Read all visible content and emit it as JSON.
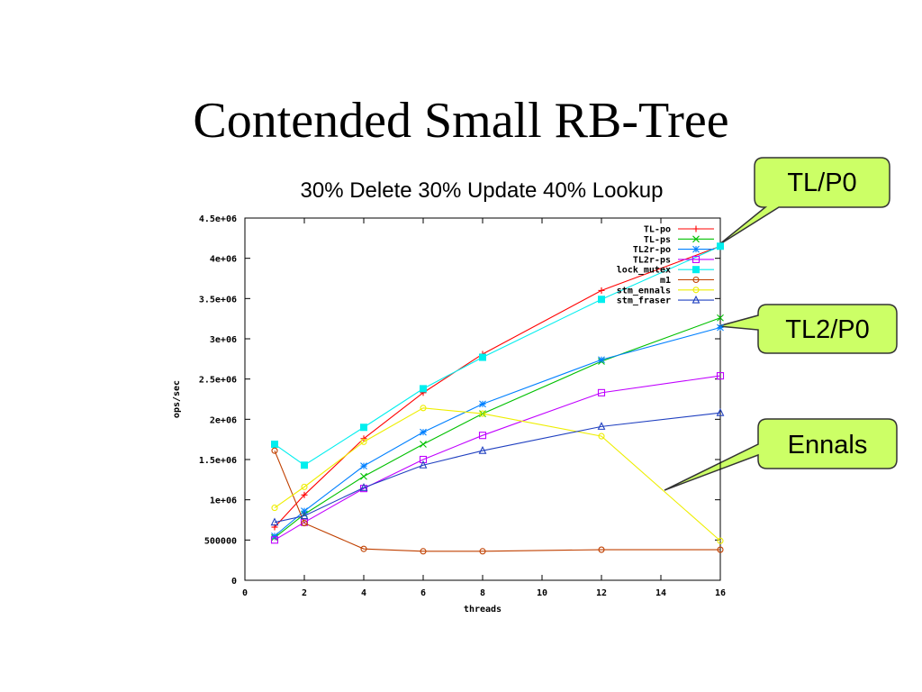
{
  "slide": {
    "title": "Contended Small RB-Tree"
  },
  "callouts": [
    {
      "id": "tlp0",
      "label": "TL/P0"
    },
    {
      "id": "tl2p0",
      "label": "TL2/P0"
    },
    {
      "id": "ennals",
      "label": "Ennals"
    }
  ],
  "colors": {
    "callout_fill": "#ccff66",
    "callout_stroke": "#333333"
  },
  "chart_data": {
    "type": "line",
    "title": "30% Delete 30% Update 40% Lookup",
    "xlabel": "threads",
    "ylabel": "ops/sec",
    "xlim": [
      0,
      16
    ],
    "ylim": [
      0,
      4500000
    ],
    "xticks": [
      0,
      2,
      4,
      6,
      8,
      10,
      12,
      14,
      16
    ],
    "xtick_labels": [
      "0",
      "2",
      "4",
      "6",
      "8",
      "10",
      "12",
      "14",
      "16"
    ],
    "yticks": [
      0,
      500000,
      1000000,
      1500000,
      2000000,
      2500000,
      3000000,
      3500000,
      4000000,
      4500000
    ],
    "ytick_labels": [
      "0",
      "500000",
      "1e+06",
      "1.5e+06",
      "2e+06",
      "2.5e+06",
      "3e+06",
      "3.5e+06",
      "4e+06",
      "4.5e+06"
    ],
    "grid": false,
    "legend_position": "top-right",
    "x": [
      1,
      2,
      4,
      6,
      8,
      12,
      16
    ],
    "series": [
      {
        "name": "TL-po",
        "color": "#ff0000",
        "marker": "plus",
        "values": [
          660000,
          1060000,
          1760000,
          2330000,
          2810000,
          3600000,
          4150000
        ]
      },
      {
        "name": "TL-ps",
        "color": "#00c000",
        "marker": "cross",
        "values": [
          530000,
          820000,
          1290000,
          1690000,
          2070000,
          2720000,
          3260000
        ]
      },
      {
        "name": "TL2r-po",
        "color": "#0080ff",
        "marker": "star",
        "values": [
          550000,
          860000,
          1420000,
          1840000,
          2190000,
          2740000,
          3140000
        ]
      },
      {
        "name": "TL2r-ps",
        "color": "#c000ff",
        "marker": "square",
        "values": [
          500000,
          720000,
          1140000,
          1500000,
          1800000,
          2330000,
          2540000
        ]
      },
      {
        "name": "lock_mutex",
        "color": "#00eeee",
        "marker": "filled-square",
        "values": [
          1690000,
          1430000,
          1900000,
          2380000,
          2770000,
          3490000,
          4150000
        ]
      },
      {
        "name": "m1",
        "color": "#c04000",
        "marker": "circle",
        "values": [
          1610000,
          710000,
          390000,
          360000,
          360000,
          380000,
          380000
        ]
      },
      {
        "name": "stm_ennals",
        "color": "#eeee00",
        "marker": "circle",
        "values": [
          900000,
          1160000,
          1720000,
          2140000,
          2070000,
          1790000,
          490000
        ]
      },
      {
        "name": "stm_fraser",
        "color": "#2040c0",
        "marker": "triangle",
        "values": [
          720000,
          800000,
          1150000,
          1430000,
          1610000,
          1910000,
          2080000
        ]
      }
    ]
  }
}
